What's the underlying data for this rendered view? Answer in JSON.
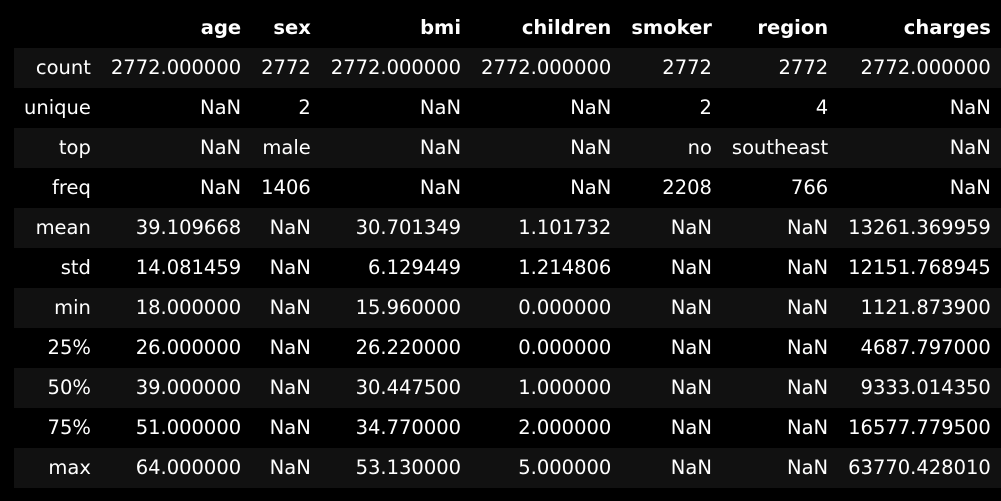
{
  "table": {
    "columns": [
      "",
      "age",
      "sex",
      "bmi",
      "children",
      "smoker",
      "region",
      "charges"
    ],
    "rows": [
      [
        "count",
        "2772.000000",
        "2772",
        "2772.000000",
        "2772.000000",
        "2772",
        "2772",
        "2772.000000"
      ],
      [
        "unique",
        "NaN",
        "2",
        "NaN",
        "NaN",
        "2",
        "4",
        "NaN"
      ],
      [
        "top",
        "NaN",
        "male",
        "NaN",
        "NaN",
        "no",
        "southeast",
        "NaN"
      ],
      [
        "freq",
        "NaN",
        "1406",
        "NaN",
        "NaN",
        "2208",
        "766",
        "NaN"
      ],
      [
        "mean",
        "39.109668",
        "NaN",
        "30.701349",
        "1.101732",
        "NaN",
        "NaN",
        "13261.369959"
      ],
      [
        "std",
        "14.081459",
        "NaN",
        "6.129449",
        "1.214806",
        "NaN",
        "NaN",
        "12151.768945"
      ],
      [
        "min",
        "18.000000",
        "NaN",
        "15.960000",
        "0.000000",
        "NaN",
        "NaN",
        "1121.873900"
      ],
      [
        "25%",
        "26.000000",
        "NaN",
        "26.220000",
        "0.000000",
        "NaN",
        "NaN",
        "4687.797000"
      ],
      [
        "50%",
        "39.000000",
        "NaN",
        "30.447500",
        "1.000000",
        "NaN",
        "NaN",
        "9333.014350"
      ],
      [
        "75%",
        "51.000000",
        "NaN",
        "34.770000",
        "2.000000",
        "NaN",
        "NaN",
        "16577.779500"
      ],
      [
        "max",
        "64.000000",
        "NaN",
        "53.130000",
        "5.000000",
        "NaN",
        "NaN",
        "63770.428010"
      ]
    ]
  },
  "colors": {
    "background": "#000000",
    "row_stripe": "#111111",
    "text": "#ffffff"
  }
}
